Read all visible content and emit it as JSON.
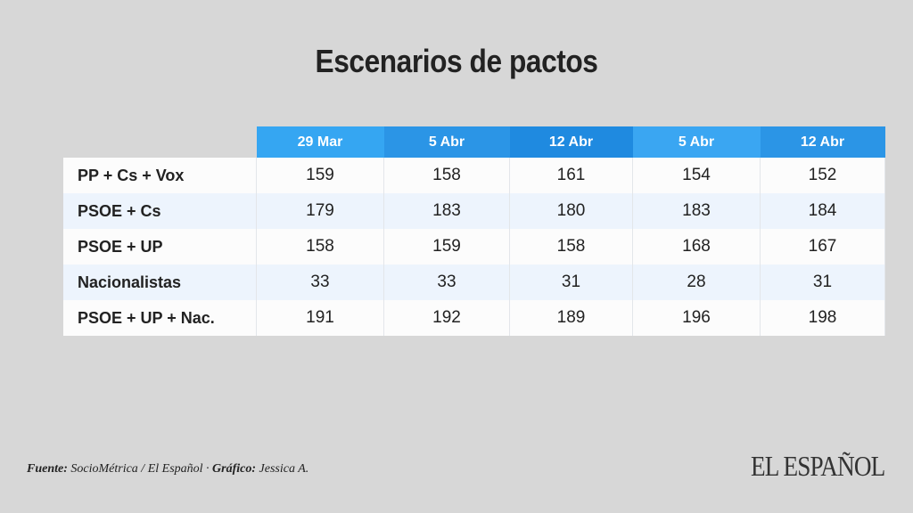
{
  "chart_data": {
    "type": "table",
    "title": "Escenarios de pactos",
    "columns": [
      "29 Mar",
      "5 Abr",
      "12 Abr",
      "5 Abr",
      "12 Abr"
    ],
    "header_colors": [
      "#35a6f2",
      "#2b95e6",
      "#1f8ae0",
      "#3aa6f2",
      "#2b95e6"
    ],
    "rows": [
      {
        "label": "PP + Cs + Vox",
        "values": [
          159,
          158,
          161,
          154,
          152
        ]
      },
      {
        "label": "PSOE + Cs",
        "values": [
          179,
          183,
          180,
          183,
          184
        ]
      },
      {
        "label": "PSOE + UP",
        "values": [
          158,
          159,
          158,
          168,
          167
        ]
      },
      {
        "label": "Nacionalistas",
        "values": [
          33,
          33,
          31,
          28,
          31
        ]
      },
      {
        "label": "PSOE + UP + Nac.",
        "values": [
          191,
          192,
          189,
          196,
          198
        ]
      }
    ]
  },
  "footer": {
    "source_label": "Fuente:",
    "source": "SocioMétrica / El Español · ",
    "graphic_label": "Gráfico:",
    "graphic": "Jessica A."
  },
  "logo": "EL ESPAÑOL"
}
